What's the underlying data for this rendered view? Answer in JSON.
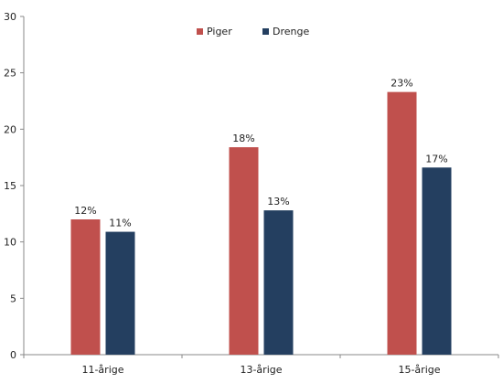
{
  "chart_data": {
    "type": "bar",
    "categories": [
      "11-årige",
      "13-årige",
      "15-årige"
    ],
    "series": [
      {
        "name": "Piger",
        "color": "#C0504D",
        "values": [
          12,
          18.4,
          23.3
        ],
        "labels": [
          "12%",
          "18%",
          "23%"
        ]
      },
      {
        "name": "Drenge",
        "color": "#243F60",
        "values": [
          10.9,
          12.8,
          16.6
        ],
        "labels": [
          "11%",
          "13%",
          "17%"
        ]
      }
    ],
    "yticks": [
      0,
      5,
      10,
      15,
      20,
      25,
      30
    ],
    "ylim": [
      0,
      30
    ],
    "grid": false,
    "legend": "top-center"
  }
}
